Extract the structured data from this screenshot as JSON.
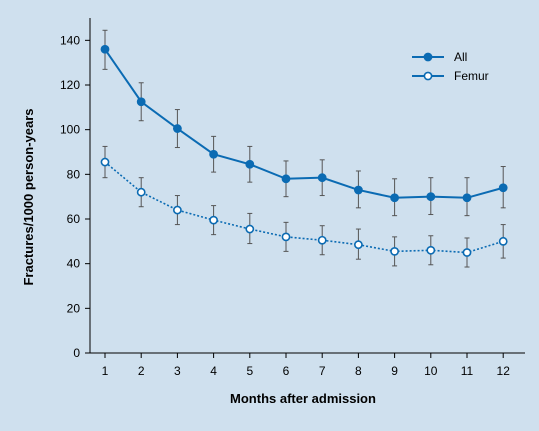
{
  "chart_data": {
    "type": "line",
    "xlabel": "Months after admission",
    "ylabel": "Fractures/1000 person-years",
    "x": [
      1,
      2,
      3,
      4,
      5,
      6,
      7,
      8,
      9,
      10,
      11,
      12
    ],
    "ylim": [
      0,
      150
    ],
    "yticks": [
      0,
      20,
      40,
      60,
      80,
      100,
      120,
      140
    ],
    "grid": false,
    "legend_position": "top-right",
    "colors": {
      "series": "#0b6bb3",
      "error_bars": "#555555",
      "background": "#cfe0ee"
    },
    "series": [
      {
        "name": "All",
        "marker": "filled-circle",
        "line_style": "solid",
        "values": [
          136,
          112.5,
          100.5,
          89,
          84.5,
          78,
          78.5,
          73,
          69.5,
          70,
          69.5,
          74
        ],
        "error_low": [
          127,
          104,
          92,
          81,
          76.5,
          70,
          70.5,
          65,
          61.5,
          62,
          61.5,
          65
        ],
        "error_high": [
          144.5,
          121,
          109,
          97,
          92.5,
          86,
          86.5,
          81.5,
          78,
          78.5,
          78.5,
          83.5
        ]
      },
      {
        "name": "Femur",
        "marker": "open-circle",
        "line_style": "dotted",
        "values": [
          85.5,
          72,
          64,
          59.5,
          55.5,
          52,
          50.5,
          48.5,
          45.5,
          46,
          45,
          50
        ],
        "error_low": [
          78.5,
          65.5,
          57.5,
          53,
          49,
          45.5,
          44,
          42,
          39,
          39.5,
          38.5,
          42.5
        ],
        "error_high": [
          92.5,
          78.5,
          70.5,
          66,
          62.5,
          58.5,
          57,
          55.5,
          52,
          52.5,
          51.5,
          57.5
        ]
      }
    ]
  }
}
